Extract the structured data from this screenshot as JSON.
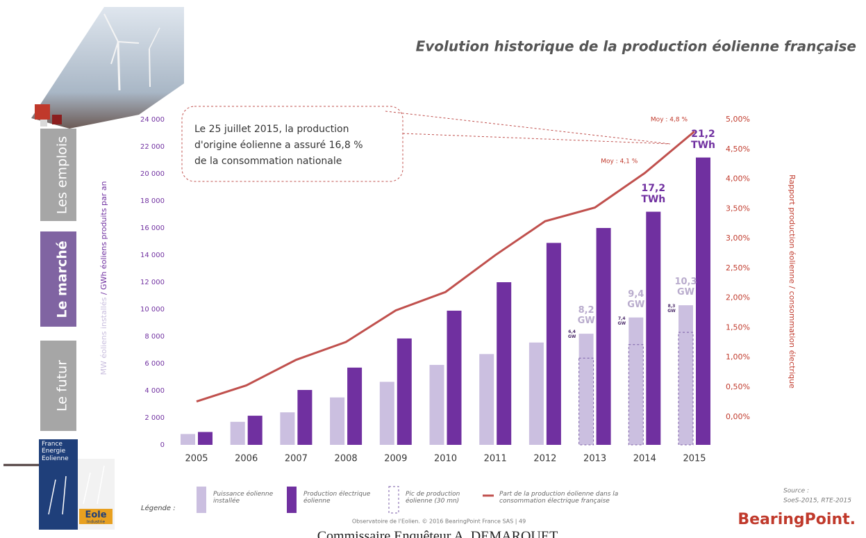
{
  "sidebar": {
    "tabs": [
      "Les emplois",
      "Le marché",
      "Le futur"
    ],
    "logo_top": "France Energie Eolienne",
    "logo_bottom": [
      "Eole",
      "Industrie"
    ]
  },
  "chart_data": {
    "type": "bar",
    "title": "Evolution historique de la production éolienne française",
    "y_label": [
      "MW éoliens installés",
      "/ GWh éoliens produits par an"
    ],
    "y2_label": "Rapport production éolienne / consommation électrique",
    "annotation": [
      "Le 25 juillet 2015, la production",
      "d'origine éolienne a assuré 16,8 %",
      "de la consommation nationale"
    ],
    "categories": [
      "2005",
      "2006",
      "2007",
      "2008",
      "2009",
      "2010",
      "2011",
      "2012",
      "2013",
      "2014",
      "2015"
    ],
    "ylim": [
      0,
      24000
    ],
    "yticks": [
      0,
      {
        "value": 2000,
        "label": "2 000"
      },
      {
        "value": 4000,
        "label": "4 000"
      },
      {
        "value": 6000,
        "label": "6 000"
      },
      {
        "value": 8000,
        "label": "8 000"
      },
      {
        "value": 10000,
        "label": "10 000"
      },
      {
        "value": 12000,
        "label": "12 000"
      },
      {
        "value": 14000,
        "label": "14 000"
      },
      {
        "value": 16000,
        "label": "16 000"
      },
      {
        "value": 18000,
        "label": "18 000"
      },
      {
        "value": 20000,
        "label": "20 000"
      },
      {
        "value": 22000,
        "label": "22 000"
      },
      {
        "value": 24000,
        "label": "24 000"
      }
    ],
    "y2lim": [
      -0.47,
      5
    ],
    "y2ticks": [
      {
        "value": 0,
        "label": "0,00%"
      },
      {
        "value": 0.5,
        "label": "0,50%"
      },
      {
        "value": 1,
        "label": "1,00%"
      },
      {
        "value": 1.5,
        "label": "1,50%"
      },
      {
        "value": 2,
        "label": "2,00%"
      },
      {
        "value": 2.5,
        "label": "2,50%"
      },
      {
        "value": 3,
        "label": "3,00%"
      },
      {
        "value": 3.5,
        "label": "3,50%"
      },
      {
        "value": 4,
        "label": "4,00%"
      },
      {
        "value": 4.5,
        "label": "4,50%"
      },
      {
        "value": 5,
        "label": "5,00%"
      }
    ],
    "legend_title": "Légende :",
    "series": [
      {
        "name": "Puissance éolienne installée",
        "type": "bar",
        "color": "#cbbfe0",
        "values": [
          800,
          1700,
          2400,
          3500,
          4650,
          5900,
          6700,
          7550,
          8200,
          9400,
          10300
        ],
        "value_labels": [
          null,
          null,
          null,
          null,
          null,
          null,
          null,
          null,
          "8,2 GW",
          "9,4 GW",
          "10,3 GW"
        ]
      },
      {
        "name": "Production électrique éolienne",
        "type": "bar",
        "color": "#7030a0",
        "values": [
          950,
          2150,
          4050,
          5700,
          7850,
          9900,
          12000,
          14900,
          16000,
          17200,
          21200
        ],
        "value_labels": [
          null,
          null,
          null,
          null,
          null,
          null,
          null,
          null,
          null,
          "17,2 TWh",
          "21,2 TWh"
        ]
      },
      {
        "name": "Pic de production éolienne (30 mn)",
        "type": "dashed",
        "color": "#7b5ea7",
        "values": [
          null,
          null,
          null,
          null,
          null,
          null,
          null,
          null,
          6400,
          7400,
          8300
        ],
        "value_labels": [
          null,
          null,
          null,
          null,
          null,
          null,
          null,
          null,
          "6,4 GW",
          "7,4 GW",
          "8,3 GW"
        ]
      },
      {
        "name": "Part de la production éolienne dans la consommation électrique française",
        "type": "line",
        "axis": "y2",
        "color": "#c0504d",
        "values": [
          0.26,
          0.53,
          0.96,
          1.26,
          1.79,
          2.1,
          2.72,
          3.29,
          3.52,
          4.1,
          4.8
        ],
        "value_labels": [
          null,
          null,
          null,
          null,
          null,
          null,
          null,
          null,
          null,
          "Moy : 4,1 %",
          "Moy : 4,8 %"
        ]
      }
    ]
  },
  "source": [
    "Source :",
    "SoeS-2015, RTE-2015"
  ],
  "footer": "Observatoire de l'Eolien. © 2016 BearingPoint France SAS | 49",
  "brand": "BearingPoint.",
  "page_footer": "Commissaire Enquêteur A. DEMARQUET"
}
